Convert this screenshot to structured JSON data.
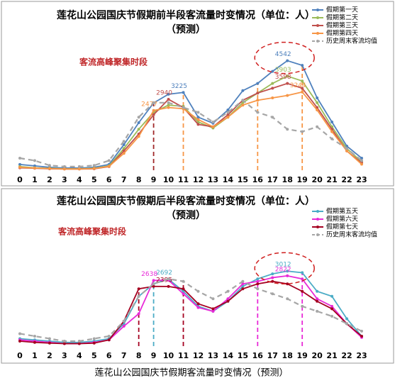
{
  "caption": "莲花山公园国庆节假期客流量时变情况（预测）",
  "chart_data": [
    {
      "type": "line",
      "title": "莲花山公园国庆节假期前半段客流量时变情况（单位：人）",
      "subtitle": "（预测）",
      "annotation": "客流高峰聚集时段",
      "categories": [
        "0",
        "1",
        "2",
        "3",
        "4",
        "5",
        "6",
        "7",
        "8",
        "9",
        "10",
        "11",
        "12",
        "13",
        "14",
        "15",
        "16",
        "17",
        "18",
        "19",
        "20",
        "21",
        "22",
        "23"
      ],
      "ylim": [
        0,
        5000
      ],
      "legend": "upper right",
      "series": [
        {
          "name": "假期第一天",
          "color": "#4f81bd",
          "labels_at": [
            11,
            18
          ],
          "values": [
            240,
            180,
            120,
            90,
            90,
            120,
            240,
            1060,
            1970,
            2790,
            3150,
            3225,
            2200,
            1950,
            2500,
            3300,
            3600,
            4100,
            4542,
            4350,
            3000,
            2000,
            1000,
            500
          ]
        },
        {
          "name": "假期第二天",
          "color": "#9bbb59",
          "labels_at": [
            18
          ],
          "values": [
            150,
            100,
            80,
            60,
            60,
            80,
            180,
            900,
            1700,
            2400,
            2700,
            2650,
            2000,
            1750,
            2200,
            2800,
            3200,
            3600,
            3903,
            3700,
            2800,
            1800,
            900,
            350
          ]
        },
        {
          "name": "假期第三天",
          "color": "#c0504d",
          "labels_at": [
            10,
            18
          ],
          "values": [
            100,
            80,
            60,
            50,
            50,
            60,
            150,
            800,
            1500,
            2300,
            2940,
            2600,
            1900,
            1800,
            2300,
            2900,
            3200,
            3400,
            3598,
            3400,
            2600,
            1700,
            800,
            300
          ]
        },
        {
          "name": "假期第四天",
          "color": "#f79646",
          "labels_at": [
            9,
            19
          ],
          "values": [
            120,
            90,
            70,
            50,
            50,
            70,
            160,
            700,
            1400,
            2477,
            2600,
            2550,
            2100,
            1800,
            2200,
            2700,
            2900,
            3000,
            3100,
            3244,
            2500,
            1600,
            800,
            250
          ]
        },
        {
          "name": "历史周末客流均值",
          "color": "#a6a6a6",
          "dashed": true,
          "values": [
            500,
            400,
            200,
            150,
            150,
            200,
            400,
            1200,
            2200,
            2800,
            2800,
            2600,
            2400,
            2000,
            2400,
            2900,
            2400,
            2200,
            1700,
            1600,
            1800,
            1300,
            900,
            400
          ]
        }
      ],
      "peak_lines": [
        {
          "at": 9,
          "color": "#a0282a"
        },
        {
          "at": 11,
          "color": "#f79646"
        },
        {
          "at": 16,
          "color": "#f79646"
        },
        {
          "at": 19,
          "color": "#f79646"
        }
      ]
    },
    {
      "type": "line",
      "title": "莲花山公园国庆节假期后半段客流量时变情况（单位：人）",
      "subtitle": "（预测）",
      "annotation": "客流高峰聚集时段",
      "categories": [
        "0",
        "1",
        "2",
        "3",
        "4",
        "5",
        "6",
        "7",
        "8",
        "9",
        "10",
        "11",
        "12",
        "13",
        "14",
        "15",
        "16",
        "17",
        "18",
        "19",
        "20",
        "21",
        "22",
        "23"
      ],
      "ylim": [
        0,
        4500
      ],
      "legend": "upper right",
      "series": [
        {
          "name": "假期第五天",
          "color": "#4bacc6",
          "labels_at": [
            10,
            18
          ],
          "values": [
            300,
            250,
            200,
            150,
            150,
            200,
            300,
            900,
            2000,
            2500,
            2692,
            2200,
            1600,
            1400,
            1800,
            2400,
            2700,
            2900,
            3012,
            2950,
            2200,
            2000,
            1100,
            400
          ]
        },
        {
          "name": "假期第六天",
          "color": "#e82ad8",
          "labels_at": [
            9,
            18
          ],
          "values": [
            250,
            200,
            150,
            100,
            100,
            150,
            250,
            800,
            1300,
            2638,
            2650,
            2100,
            1550,
            1400,
            1900,
            2500,
            2600,
            2750,
            2822,
            2700,
            1900,
            1600,
            900,
            350
          ]
        },
        {
          "name": "假期第七天",
          "color": "#a50021",
          "labels_at": [
            10
          ],
          "values": [
            200,
            150,
            120,
            100,
            100,
            120,
            250,
            1000,
            2300,
            2400,
            2395,
            2300,
            1700,
            1500,
            1800,
            2300,
            2500,
            2600,
            2500,
            2200,
            1800,
            1500,
            900,
            400
          ]
        },
        {
          "name": "历史周末客流均值",
          "color": "#a6a6a6",
          "dashed": true,
          "values": [
            500,
            400,
            300,
            200,
            200,
            300,
            400,
            1000,
            2000,
            2500,
            2700,
            2600,
            2200,
            1900,
            2200,
            2600,
            2300,
            2100,
            1900,
            1600,
            1400,
            1200,
            900,
            600
          ]
        }
      ],
      "peak_lines": [
        {
          "at": 8,
          "color": "#a50021"
        },
        {
          "at": 9,
          "color": "#4bacc6"
        },
        {
          "at": 11,
          "color": "#a50021"
        },
        {
          "at": 16,
          "color": "#e82ad8"
        },
        {
          "at": 19,
          "color": "#e82ad8"
        }
      ]
    }
  ]
}
